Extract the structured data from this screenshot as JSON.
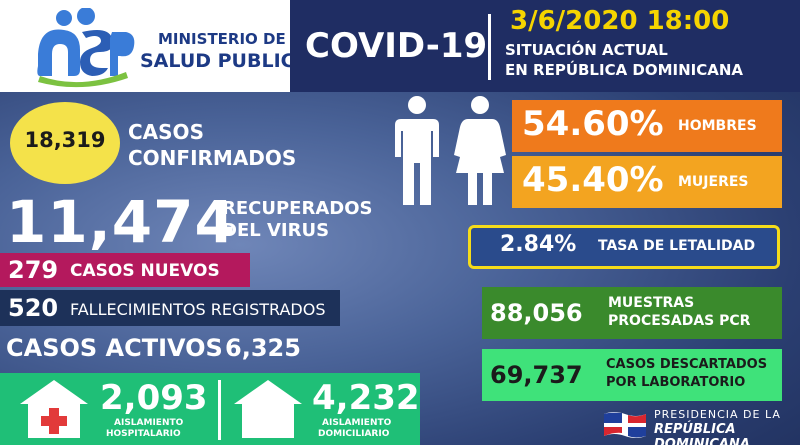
{
  "logo": {
    "mark": "msp",
    "line1": "MINISTERIO DE",
    "line2": "SALUD PUBLICA"
  },
  "header": {
    "title": "COVID-19",
    "datetime": "3/6/2020 18:00",
    "subtitle_line1": "SITUACIÓN ACTUAL",
    "subtitle_line2": "EN REPÚBLICA DOMINICANA"
  },
  "confirmed": {
    "value": "18,319",
    "label_line1": "CASOS",
    "label_line2": "CONFIRMADOS"
  },
  "recovered": {
    "value": "11,474",
    "label_line1": "RECUPERADOS",
    "label_line2": "DEL VIRUS"
  },
  "new_cases": {
    "value": "279",
    "label": "CASOS NUEVOS"
  },
  "deaths": {
    "value": "520",
    "label": "FALLECIMIENTOS REGISTRADOS"
  },
  "active": {
    "label": "CASOS ACTIVOS",
    "value": "6,325"
  },
  "isolation": {
    "hospital": {
      "value": "2,093",
      "label_line1": "AISLAMIENTO",
      "label_line2": "HOSPITALARIO",
      "icon": "hospital-house-icon"
    },
    "home": {
      "value": "4,232",
      "label_line1": "AISLAMIENTO",
      "label_line2": "DOMICILIARIO",
      "icon": "house-icon"
    }
  },
  "gender": {
    "men": {
      "value": "54.60%",
      "label": "HOMBRES",
      "icon": "man-icon"
    },
    "women": {
      "value": "45.40%",
      "label": "MUJERES",
      "icon": "woman-icon"
    }
  },
  "lethality": {
    "value": "2.84%",
    "label": "TASA DE LETALIDAD"
  },
  "pcr": {
    "value": "88,056",
    "label_line1": "MUESTRAS",
    "label_line2": "PROCESADAS PCR"
  },
  "discarded": {
    "value": "69,737",
    "label_line1": "CASOS DESCARTADOS",
    "label_line2": "POR LABORATORIO"
  },
  "footer": {
    "line1": "PRESIDENCIA DE LA",
    "line2": "REPÚBLICA DOMINICANA",
    "icon": "dominican-flag-icon"
  },
  "colors": {
    "header_bg": "#1f2d63",
    "confirmed_circle": "#f4e24a",
    "new_cases": "#b4195d",
    "deaths": "#1d3159",
    "isolation": "#1fbf77",
    "men": "#ef7a1c",
    "women": "#f3a420",
    "lethality_border": "#f5dc1a",
    "pcr": "#3a8a2c",
    "discarded": "#3fe27a",
    "date": "#f5d400"
  }
}
